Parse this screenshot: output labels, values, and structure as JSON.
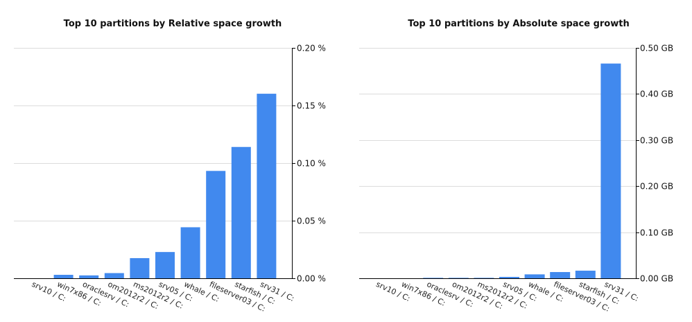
{
  "colors": {
    "bar": "#4189ee",
    "grid": "#dcdcdc",
    "axis": "#000000"
  },
  "chart_data": [
    {
      "type": "bar",
      "title": "Top 10 partitions by Relative space growth",
      "categories": [
        "srv10 / C:",
        "win7x86 / C:",
        "oraclesrv / C:",
        "om2012r2 / C:",
        "ms2012r2 / C:",
        "srv05 / C:",
        "whale / C:",
        "fileserver03 / C:",
        "starfish / C:",
        "srv31 / C:"
      ],
      "values": [
        0.0,
        0.003,
        0.0025,
        0.0045,
        0.0175,
        0.0228,
        0.0443,
        0.0932,
        0.114,
        0.1602
      ],
      "ylim": [
        0,
        0.2
      ],
      "yticks": [
        0.0,
        0.05,
        0.1,
        0.15,
        0.2
      ],
      "ytick_labels": [
        "0.00 %",
        "0.05 %",
        "0.10 %",
        "0.15 %",
        "0.20 %"
      ],
      "y_axis_side": "right",
      "grid": true
    },
    {
      "type": "bar",
      "title": "Top 10 partitions by Absolute space growth",
      "categories": [
        "srv10 / C:",
        "win7x86 / C:",
        "oraclesrv / C:",
        "om2012r2 / C:",
        "ms2012r2 / C:",
        "srv05 / C:",
        "whale / C:",
        "fileserver03 / C:",
        "starfish / C:",
        "srv31 / C:"
      ],
      "values": [
        0.0,
        0.0,
        0.001,
        0.001,
        0.001,
        0.003,
        0.0085,
        0.0135,
        0.0165,
        0.466
      ],
      "ylim": [
        0,
        0.5
      ],
      "yticks": [
        0.0,
        0.1,
        0.2,
        0.3,
        0.4,
        0.5
      ],
      "ytick_labels": [
        "0.00 GB",
        "0.10 GB",
        "0.20 GB",
        "0.30 GB",
        "0.40 GB",
        "0.50 GB"
      ],
      "y_axis_side": "right",
      "grid": true
    }
  ]
}
